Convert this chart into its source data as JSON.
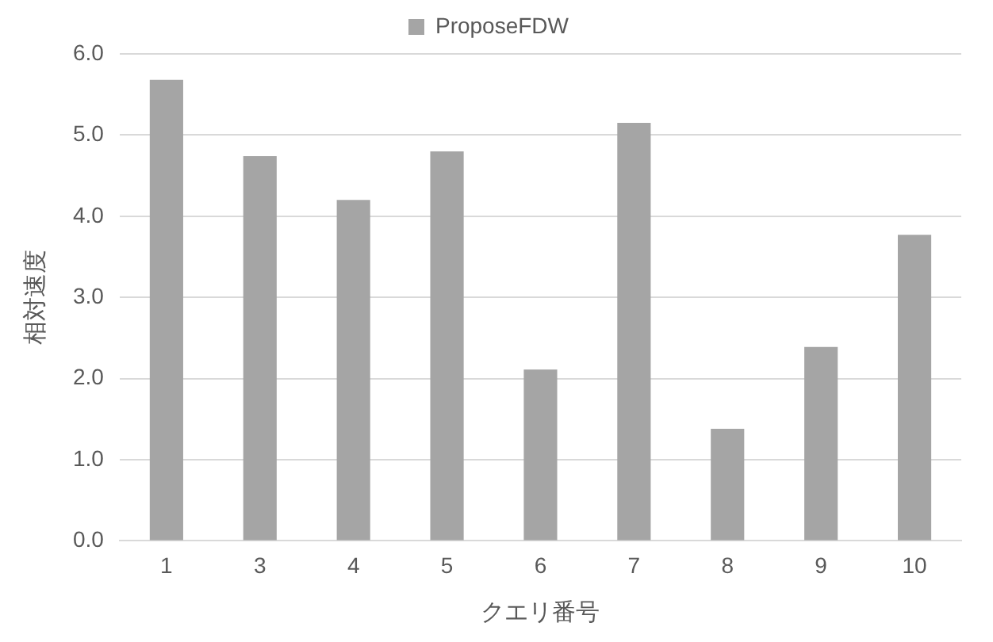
{
  "chart_data": {
    "type": "bar",
    "xlabel": "クエリ番号",
    "ylabel": "相対速度",
    "categories": [
      "1",
      "3",
      "4",
      "5",
      "6",
      "7",
      "8",
      "9",
      "10"
    ],
    "series": [
      {
        "name": "ProposeFDW",
        "color": "#a5a5a5",
        "values": [
          5.68,
          4.74,
          4.2,
          4.8,
          2.11,
          5.15,
          1.38,
          2.39,
          3.77
        ]
      }
    ],
    "ylim": [
      0,
      6
    ],
    "yticks": [
      {
        "value": 0,
        "label": "0.0"
      },
      {
        "value": 1,
        "label": "1.0"
      },
      {
        "value": 2,
        "label": "2.0"
      },
      {
        "value": 3,
        "label": "3.0"
      },
      {
        "value": 4,
        "label": "4.0"
      },
      {
        "value": 5,
        "label": "5.0"
      },
      {
        "value": 6,
        "label": "6.0"
      }
    ],
    "grid": "y",
    "legend": "top"
  }
}
